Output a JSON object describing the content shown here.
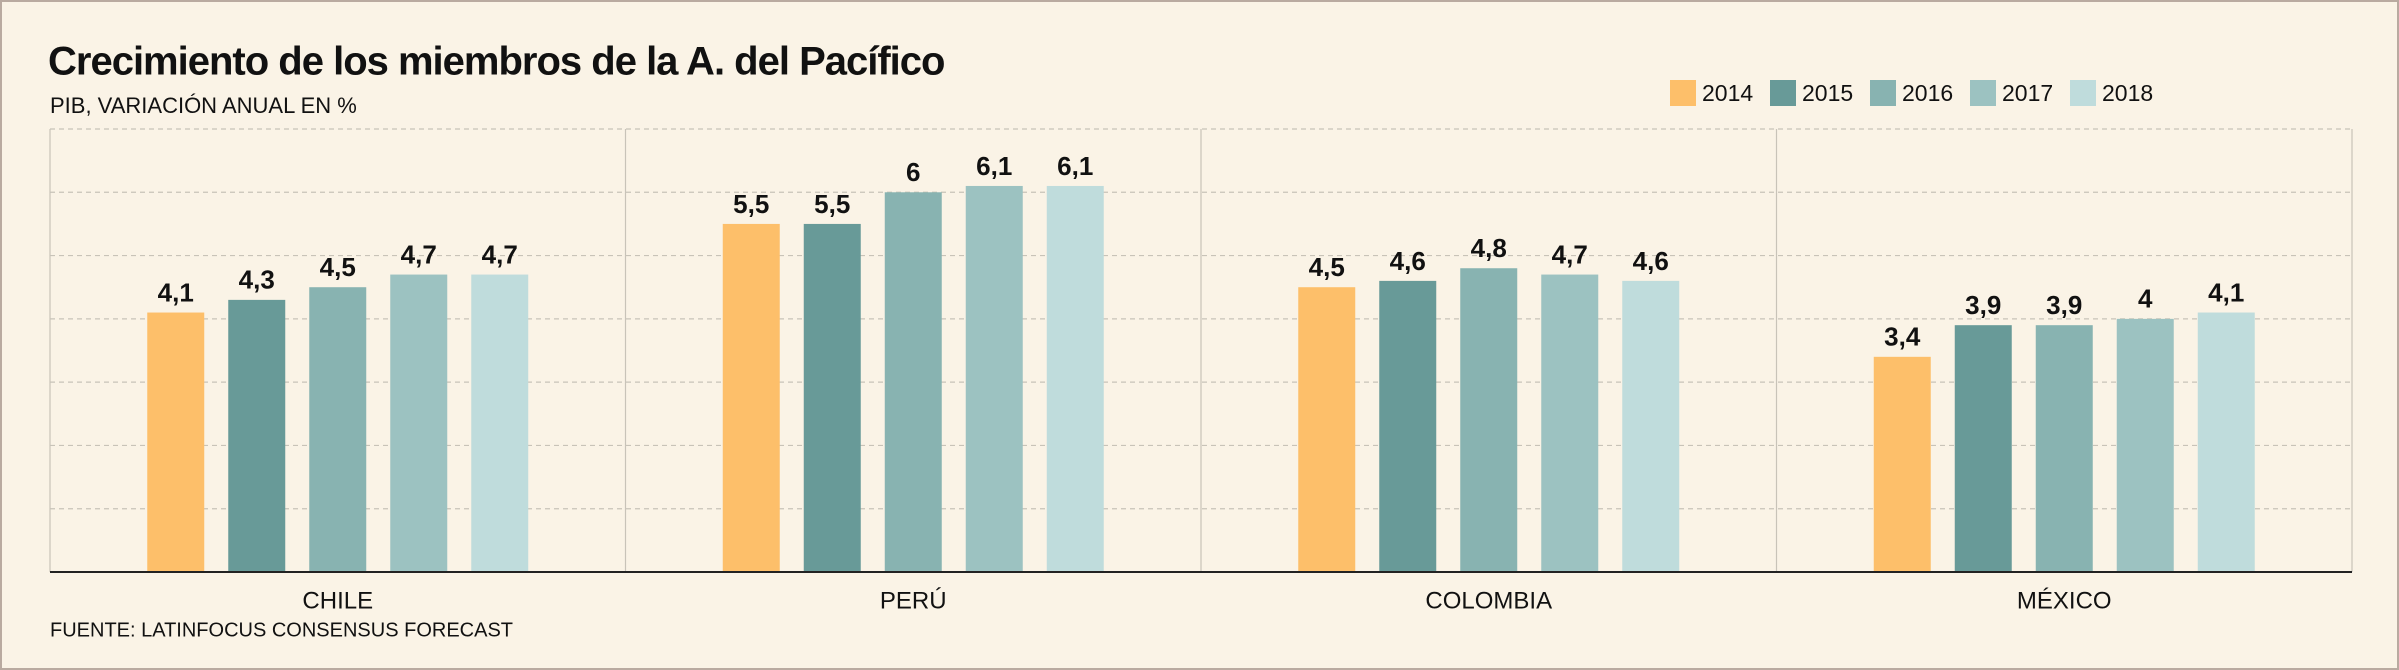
{
  "chart_data": {
    "type": "bar",
    "title": "Crecimiento de  los miembros de la A. del Pacífico",
    "subtitle": "PIB, VARIACIÓN ANUAL EN %",
    "source": "FUENTE: LATINFOCUS CONSENSUS FORECAST",
    "categories": [
      "CHILE",
      "PERÚ",
      "COLOMBIA",
      "MÉXICO"
    ],
    "series": [
      {
        "name": "2014",
        "color": "#fdbf6a",
        "values": [
          4.1,
          5.5,
          4.5,
          3.4
        ],
        "value_labels": [
          "4,1",
          "5,5",
          "4,5",
          "3,4"
        ]
      },
      {
        "name": "2015",
        "color": "#689a98",
        "values": [
          4.3,
          5.5,
          4.6,
          3.9
        ],
        "value_labels": [
          "4,3",
          "5,5",
          "4,6",
          "3,9"
        ]
      },
      {
        "name": "2016",
        "color": "#88b3b1",
        "values": [
          4.5,
          6,
          4.8,
          3.9
        ],
        "value_labels": [
          "4,5",
          "6",
          "4,8",
          "3,9"
        ]
      },
      {
        "name": "2017",
        "color": "#9cc2c1",
        "values": [
          4.7,
          6.1,
          4.7,
          4
        ],
        "value_labels": [
          "4,7",
          "6,1",
          "4,7",
          "4"
        ]
      },
      {
        "name": "2018",
        "color": "#bfdcdc",
        "values": [
          4.7,
          6.1,
          4.6,
          4.1
        ],
        "value_labels": [
          "4,7",
          "6,1",
          "4,6",
          "4,1"
        ]
      }
    ],
    "ylim": [
      0,
      7
    ],
    "yticks": [
      0,
      1,
      2,
      3,
      4,
      5,
      6,
      7
    ],
    "grid": true,
    "legend": "top-right"
  }
}
